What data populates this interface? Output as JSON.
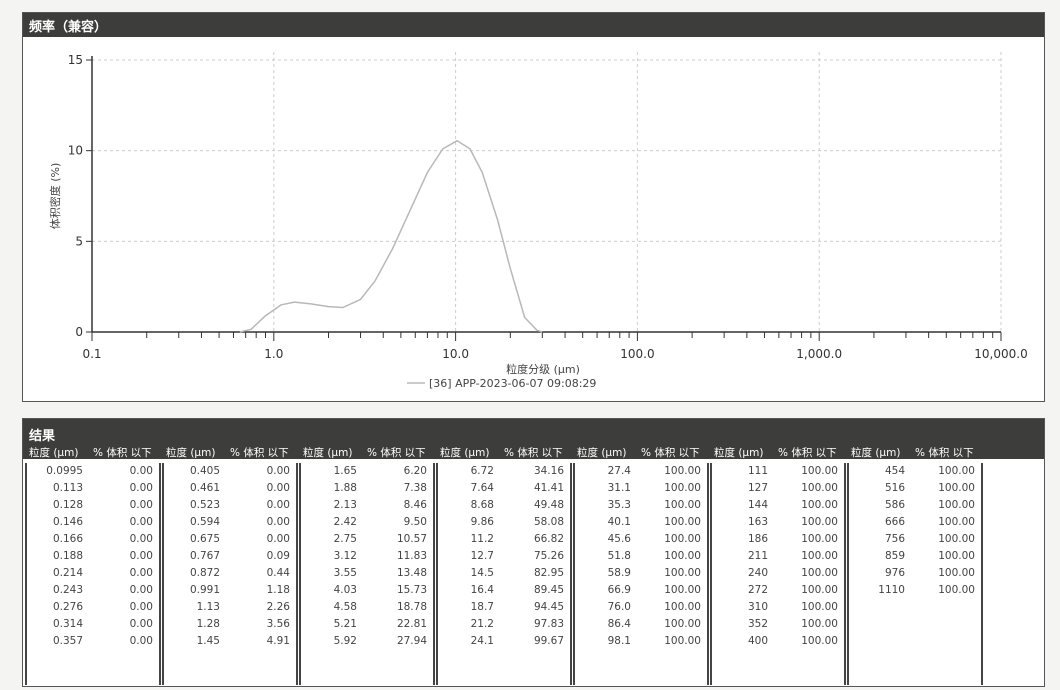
{
  "chart_title": "频率（兼容）",
  "chart_data": {
    "type": "line",
    "title": "频率（兼容）",
    "xlabel": "粒度分级 (μm)",
    "ylabel": "体积密度 (%)",
    "xscale": "log",
    "xlim": [
      0.1,
      10000
    ],
    "ylim": [
      0,
      15
    ],
    "xticks": [
      "0.1",
      "1.0",
      "10.0",
      "100.0",
      "1,000.0",
      "10,000.0"
    ],
    "yticks": [
      "0",
      "5",
      "10",
      "15"
    ],
    "grid": true,
    "legend_position": "bottom-center",
    "series": [
      {
        "name": "[36] APP-2023-06-07 09:08:29",
        "color": "#b8b8b8",
        "x": [
          0.65,
          0.75,
          0.9,
          1.1,
          1.3,
          1.6,
          2.0,
          2.4,
          3.0,
          3.6,
          4.5,
          5.5,
          7,
          8.5,
          10.2,
          12,
          14,
          17,
          20,
          24,
          28,
          30
        ],
        "y": [
          0,
          0.15,
          0.9,
          1.5,
          1.65,
          1.55,
          1.4,
          1.35,
          1.8,
          2.8,
          4.6,
          6.5,
          8.8,
          10.1,
          10.55,
          10.1,
          8.8,
          6.2,
          3.5,
          0.8,
          0.1,
          0
        ]
      }
    ]
  },
  "results": {
    "title": "结果",
    "col_size": "粒度 (μm)",
    "col_pct": "% 体积 以下",
    "groups": [
      [
        [
          "0.0995",
          "0.00"
        ],
        [
          "0.113",
          "0.00"
        ],
        [
          "0.128",
          "0.00"
        ],
        [
          "0.146",
          "0.00"
        ],
        [
          "0.166",
          "0.00"
        ],
        [
          "0.188",
          "0.00"
        ],
        [
          "0.214",
          "0.00"
        ],
        [
          "0.243",
          "0.00"
        ],
        [
          "0.276",
          "0.00"
        ],
        [
          "0.314",
          "0.00"
        ],
        [
          "0.357",
          "0.00"
        ]
      ],
      [
        [
          "0.405",
          "0.00"
        ],
        [
          "0.461",
          "0.00"
        ],
        [
          "0.523",
          "0.00"
        ],
        [
          "0.594",
          "0.00"
        ],
        [
          "0.675",
          "0.00"
        ],
        [
          "0.767",
          "0.09"
        ],
        [
          "0.872",
          "0.44"
        ],
        [
          "0.991",
          "1.18"
        ],
        [
          "1.13",
          "2.26"
        ],
        [
          "1.28",
          "3.56"
        ],
        [
          "1.45",
          "4.91"
        ]
      ],
      [
        [
          "1.65",
          "6.20"
        ],
        [
          "1.88",
          "7.38"
        ],
        [
          "2.13",
          "8.46"
        ],
        [
          "2.42",
          "9.50"
        ],
        [
          "2.75",
          "10.57"
        ],
        [
          "3.12",
          "11.83"
        ],
        [
          "3.55",
          "13.48"
        ],
        [
          "4.03",
          "15.73"
        ],
        [
          "4.58",
          "18.78"
        ],
        [
          "5.21",
          "22.81"
        ],
        [
          "5.92",
          "27.94"
        ]
      ],
      [
        [
          "6.72",
          "34.16"
        ],
        [
          "7.64",
          "41.41"
        ],
        [
          "8.68",
          "49.48"
        ],
        [
          "9.86",
          "58.08"
        ],
        [
          "11.2",
          "66.82"
        ],
        [
          "12.7",
          "75.26"
        ],
        [
          "14.5",
          "82.95"
        ],
        [
          "16.4",
          "89.45"
        ],
        [
          "18.7",
          "94.45"
        ],
        [
          "21.2",
          "97.83"
        ],
        [
          "24.1",
          "99.67"
        ]
      ],
      [
        [
          "27.4",
          "100.00"
        ],
        [
          "31.1",
          "100.00"
        ],
        [
          "35.3",
          "100.00"
        ],
        [
          "40.1",
          "100.00"
        ],
        [
          "45.6",
          "100.00"
        ],
        [
          "51.8",
          "100.00"
        ],
        [
          "58.9",
          "100.00"
        ],
        [
          "66.9",
          "100.00"
        ],
        [
          "76.0",
          "100.00"
        ],
        [
          "86.4",
          "100.00"
        ],
        [
          "98.1",
          "100.00"
        ]
      ],
      [
        [
          "111",
          "100.00"
        ],
        [
          "127",
          "100.00"
        ],
        [
          "144",
          "100.00"
        ],
        [
          "163",
          "100.00"
        ],
        [
          "186",
          "100.00"
        ],
        [
          "211",
          "100.00"
        ],
        [
          "240",
          "100.00"
        ],
        [
          "272",
          "100.00"
        ],
        [
          "310",
          "100.00"
        ],
        [
          "352",
          "100.00"
        ],
        [
          "400",
          "100.00"
        ]
      ],
      [
        [
          "454",
          "100.00"
        ],
        [
          "516",
          "100.00"
        ],
        [
          "586",
          "100.00"
        ],
        [
          "666",
          "100.00"
        ],
        [
          "756",
          "100.00"
        ],
        [
          "859",
          "100.00"
        ],
        [
          "976",
          "100.00"
        ],
        [
          "1110",
          "100.00"
        ]
      ]
    ]
  }
}
